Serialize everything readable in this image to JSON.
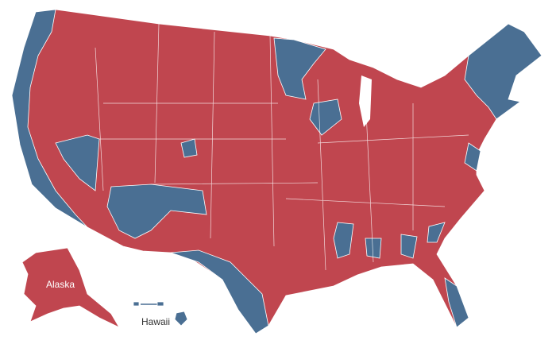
{
  "map": {
    "labels": {
      "alaska": "Alaska",
      "hawaii": "Hawaii"
    }
  }
}
